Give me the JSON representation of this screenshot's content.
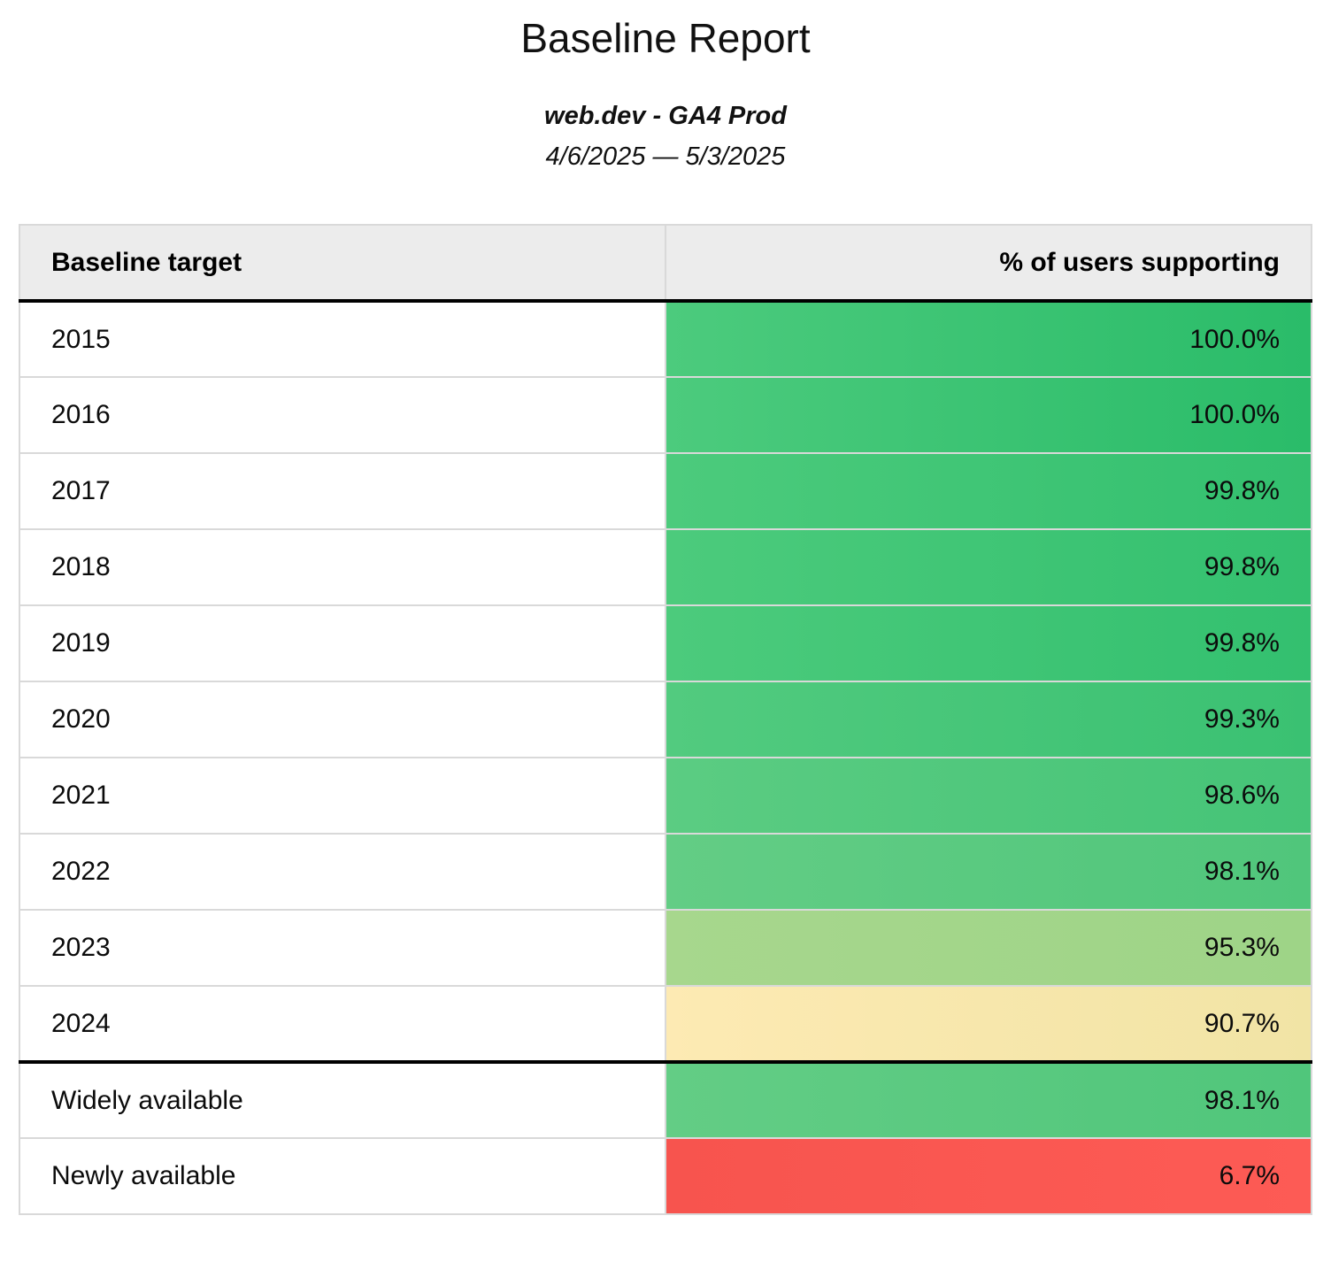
{
  "report": {
    "title": "Baseline Report",
    "subtitle": "web.dev - GA4 Prod",
    "date_range": "4/6/2025 — 5/3/2025"
  },
  "table": {
    "columns": [
      "Baseline target",
      "% of users supporting"
    ],
    "rows": [
      {
        "target": "2015",
        "value": "100.0%",
        "bg_left": "#4ccb7d",
        "bg_right": "#2abc69",
        "thick_border_after": false
      },
      {
        "target": "2016",
        "value": "100.0%",
        "bg_left": "#4ccb7d",
        "bg_right": "#2abc69",
        "thick_border_after": false
      },
      {
        "target": "2017",
        "value": "99.8%",
        "bg_left": "#4ccb7c",
        "bg_right": "#33c06f",
        "thick_border_after": false
      },
      {
        "target": "2018",
        "value": "99.8%",
        "bg_left": "#4ccb7c",
        "bg_right": "#33c06f",
        "thick_border_after": false
      },
      {
        "target": "2019",
        "value": "99.8%",
        "bg_left": "#4ccb7c",
        "bg_right": "#33c06f",
        "thick_border_after": false
      },
      {
        "target": "2020",
        "value": "99.3%",
        "bg_left": "#52cb7f",
        "bg_right": "#3ac172",
        "thick_border_after": false
      },
      {
        "target": "2021",
        "value": "98.6%",
        "bg_left": "#5bcc82",
        "bg_right": "#45c477",
        "thick_border_after": false
      },
      {
        "target": "2022",
        "value": "98.1%",
        "bg_left": "#63cd85",
        "bg_right": "#50c67b",
        "thick_border_after": false
      },
      {
        "target": "2023",
        "value": "95.3%",
        "bg_left": "#a7d78d",
        "bg_right": "#9ed487",
        "thick_border_after": false
      },
      {
        "target": "2024",
        "value": "90.7%",
        "bg_left": "#fdeab3",
        "bg_right": "#f1e4a5",
        "thick_border_after": true
      },
      {
        "target": "Widely available",
        "value": "98.1%",
        "bg_left": "#63cd85",
        "bg_right": "#50c67b",
        "thick_border_after": false
      },
      {
        "target": "Newly available",
        "value": "6.7%",
        "bg_left": "#f7544e",
        "bg_right": "#fd5b55",
        "thick_border_after": false
      }
    ]
  },
  "colors": {
    "header_background": "#ececec",
    "row_separator": "#d9d9d9",
    "section_separator": "#000000",
    "good_green": "#2abc69",
    "mid_green": "#9ed487",
    "warn_yellow": "#f5e6a8",
    "bad_red": "#f9554f"
  },
  "chart_data": {
    "type": "table",
    "title": "Baseline Report",
    "subtitle": "web.dev - GA4 Prod",
    "date_range": "4/6/2025 — 5/3/2025",
    "columns": [
      "Baseline target",
      "% of users supporting"
    ],
    "rows": [
      [
        "2015",
        100.0
      ],
      [
        "2016",
        100.0
      ],
      [
        "2017",
        99.8
      ],
      [
        "2018",
        99.8
      ],
      [
        "2019",
        99.8
      ],
      [
        "2020",
        99.3
      ],
      [
        "2021",
        98.6
      ],
      [
        "2022",
        98.1
      ],
      [
        "2023",
        95.3
      ],
      [
        "2024",
        90.7
      ],
      [
        "Widely available",
        98.1
      ],
      [
        "Newly available",
        6.7
      ]
    ],
    "value_unit": "% of users supporting",
    "color_scale": "heatmap: high=green, mid=yellow, low=red",
    "layout": "two-column table, values right-aligned, thick divider after 2024 row"
  }
}
